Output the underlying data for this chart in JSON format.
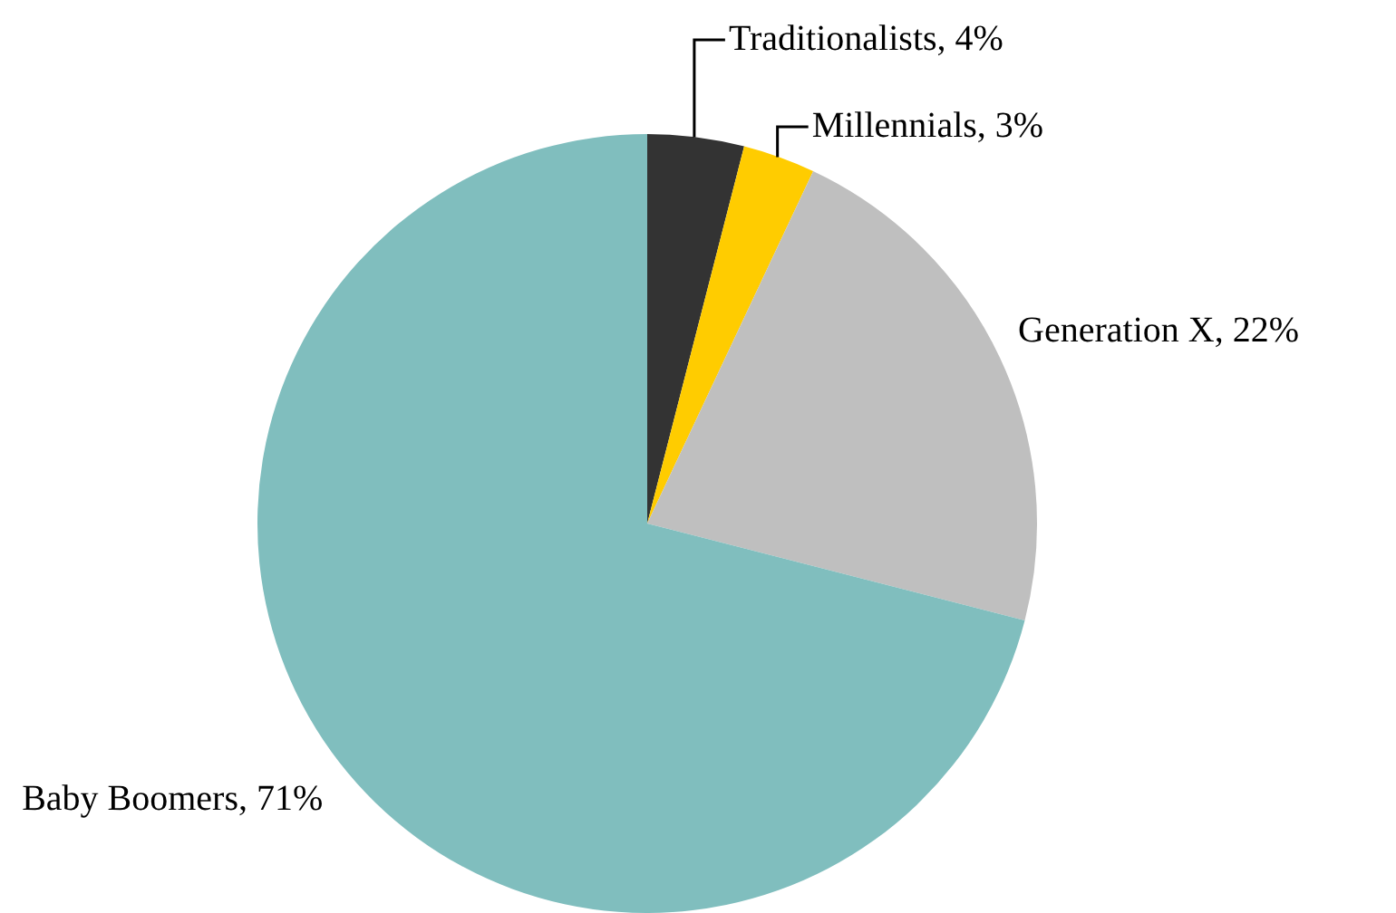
{
  "chart_data": {
    "type": "pie",
    "categories": [
      "Traditionalists",
      "Millennials",
      "Generation X",
      "Baby Boomers"
    ],
    "values": [
      4,
      3,
      22,
      71
    ],
    "value_labels": [
      "4%",
      "3%",
      "22%",
      "71%"
    ],
    "colors": [
      "#333333",
      "#ffcc00",
      "#bfbfbf",
      "#80bebe"
    ],
    "legend": false
  }
}
